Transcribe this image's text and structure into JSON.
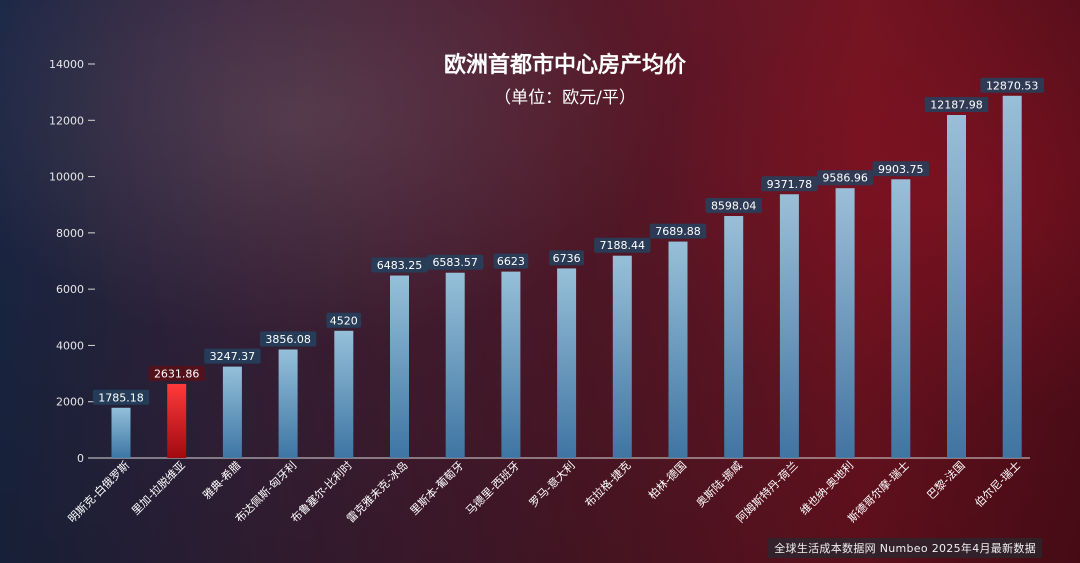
{
  "colors": {
    "bar_top": "#9fd2ec",
    "bar_bottom": "#3f7fb0",
    "highlight_top": "#ff3a3a",
    "highlight_bottom": "#a00a10",
    "label_bg": "#24425e",
    "label_highlight_bg": "#5a1016"
  },
  "chart_data": {
    "type": "bar",
    "title": "欧洲首都市中心房产均价",
    "subtitle": "（单位：欧元/平）",
    "categories": [
      "明斯克-白俄罗斯",
      "里加-拉脱维亚",
      "雅典-希腊",
      "布达佩斯-匈牙利",
      "布鲁塞尔-比利时",
      "雷克雅未克-冰岛",
      "里斯本-葡萄牙",
      "马德里-西班牙",
      "罗马-意大利",
      "布拉格-捷克",
      "柏林-德国",
      "奥斯陆-挪威",
      "阿姆斯特丹-荷兰",
      "维也纳-奥地利",
      "斯德哥尔摩-瑞士",
      "巴黎-法国",
      "伯尔尼-瑞士"
    ],
    "values": [
      1785.18,
      2631.86,
      3247.37,
      3856.08,
      4520,
      6483.25,
      6583.57,
      6623,
      6736,
      7188.44,
      7689.88,
      8598.04,
      9371.78,
      9586.96,
      9903.75,
      12187.98,
      12870.53
    ],
    "value_labels": [
      "1785.18",
      "2631.86",
      "3247.37",
      "3856.08",
      "4520",
      "6483.25",
      "6583.57",
      "6623",
      "6736",
      "7188.44",
      "7689.88",
      "8598.04",
      "9371.78",
      "9586.96",
      "9903.75",
      "12187.98",
      "12870.53"
    ],
    "highlight": "里加-拉脱维亚",
    "ylim": [
      0,
      14000
    ],
    "yticks": [
      0,
      2000,
      4000,
      6000,
      8000,
      10000,
      12000,
      14000
    ],
    "ytick_labels": [
      "0",
      "2000",
      "4000",
      "6000",
      "8000",
      "10000",
      "12000",
      "14000"
    ],
    "grid": false
  },
  "source_text": "全球生活成本数据网 Numbeo 2025年4月最新数据"
}
